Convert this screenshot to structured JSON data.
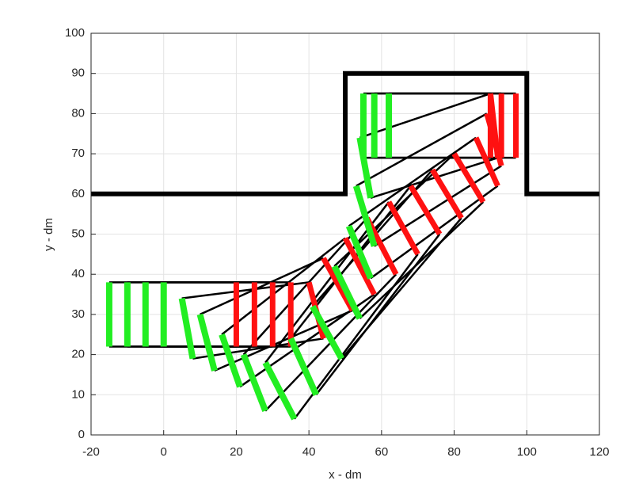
{
  "chart_data": {
    "type": "poses",
    "xlabel": "x - dm",
    "ylabel": "y - dm",
    "xlim": [
      -20,
      120
    ],
    "ylim": [
      0,
      100
    ],
    "xticks": [
      -20,
      0,
      20,
      40,
      60,
      80,
      100,
      120
    ],
    "yticks": [
      0,
      10,
      20,
      30,
      40,
      50,
      60,
      70,
      80,
      90,
      100
    ],
    "grid": true,
    "boundary": {
      "color": "#000000",
      "x": [
        -20,
        50,
        50,
        100,
        100,
        120
      ],
      "y": [
        60,
        60,
        90,
        90,
        60,
        60
      ]
    },
    "trailer_color": "#22ee22",
    "tractor_color": "#ff1111",
    "link_color": "#000000",
    "poses": [
      {
        "trailer": [
          -15,
          38,
          -15,
          22
        ],
        "tractor": [
          20,
          38,
          20,
          22
        ]
      },
      {
        "trailer": [
          -10,
          38,
          -10,
          22
        ],
        "tractor": [
          25,
          38,
          25,
          22
        ]
      },
      {
        "trailer": [
          -5,
          38,
          -5,
          22
        ],
        "tractor": [
          30,
          38,
          30,
          22
        ]
      },
      {
        "trailer": [
          0,
          38,
          0,
          22
        ],
        "tractor": [
          35,
          38,
          35,
          22
        ]
      },
      {
        "trailer": [
          5,
          34,
          8,
          19
        ],
        "tractor": [
          40,
          38,
          44,
          24
        ]
      },
      {
        "trailer": [
          10,
          30,
          14,
          16
        ],
        "tractor": [
          44,
          44,
          52,
          31
        ]
      },
      {
        "trailer": [
          16,
          25,
          21,
          12
        ],
        "tractor": [
          50,
          49,
          58,
          35
        ]
      },
      {
        "trailer": [
          22,
          20,
          28,
          6
        ],
        "tractor": [
          56,
          54,
          64,
          40
        ]
      },
      {
        "trailer": [
          28,
          18,
          36,
          4
        ],
        "tractor": [
          62,
          58,
          70,
          45
        ]
      },
      {
        "trailer": [
          35,
          24,
          42,
          10
        ],
        "tractor": [
          68,
          62,
          76,
          50
        ]
      },
      {
        "trailer": [
          41,
          32,
          49,
          19
        ],
        "tractor": [
          74,
          66,
          82,
          54
        ]
      },
      {
        "trailer": [
          47,
          42,
          54,
          29
        ],
        "tractor": [
          80,
          70,
          88,
          58
        ]
      },
      {
        "trailer": [
          51,
          52,
          57,
          39
        ],
        "tractor": [
          86,
          74,
          92,
          62
        ]
      },
      {
        "trailer": [
          53,
          62,
          58,
          47
        ],
        "tractor": [
          89,
          80,
          93,
          67
        ]
      },
      {
        "trailer": [
          54,
          74,
          57,
          59
        ],
        "tractor": [
          90,
          85,
          92,
          69
        ]
      },
      {
        "trailer": [
          55,
          85,
          55,
          69
        ],
        "tractor": [
          90,
          85,
          90,
          69
        ]
      },
      {
        "trailer": [
          58,
          85,
          58,
          69
        ],
        "tractor": [
          93,
          85,
          93,
          69
        ]
      },
      {
        "trailer": [
          62,
          85,
          62,
          69
        ],
        "tractor": [
          97,
          85,
          97,
          69
        ]
      }
    ]
  }
}
